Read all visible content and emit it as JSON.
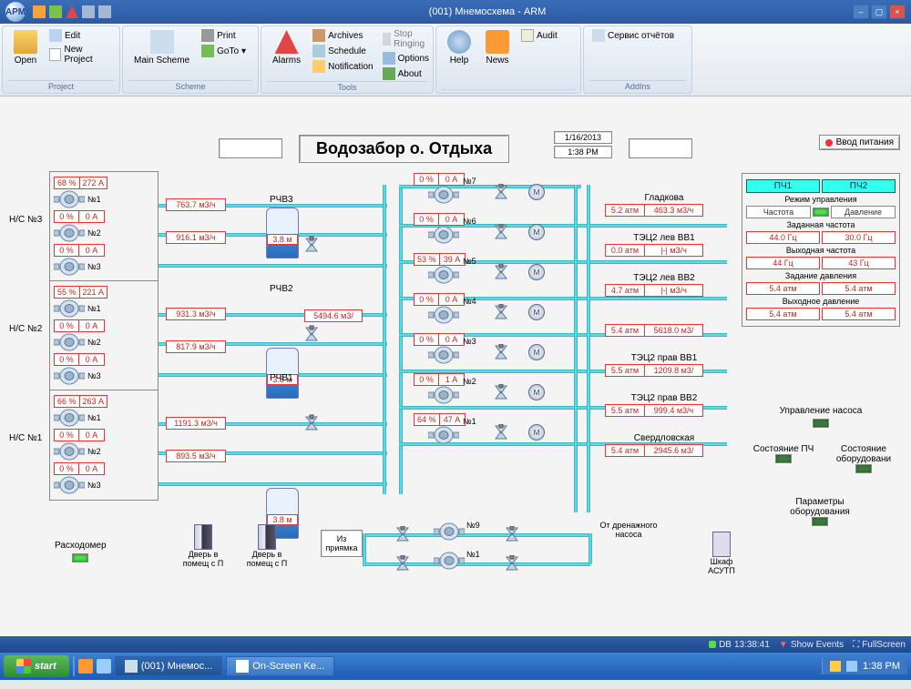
{
  "app": {
    "title": "(001) Мнемосхема - ARM",
    "logo": "АРМ"
  },
  "ribbon": {
    "groups": {
      "project": {
        "footer": "Project",
        "open": "Open",
        "edit": "Edit",
        "new_project": "New Project"
      },
      "scheme": {
        "footer": "Scheme",
        "main_scheme": "Main Scheme",
        "print": "Print",
        "goto": "GoTo"
      },
      "tools": {
        "footer": "Tools",
        "alarms": "Alarms",
        "archives": "Archives",
        "schedule": "Schedule",
        "notification": "Notification",
        "stop_ringing": "Stop Ringing",
        "options": "Options",
        "about": "About"
      },
      "misc": {
        "footer": "",
        "help": "Help",
        "news": "News",
        "audit": "Audit"
      },
      "addins": {
        "footer": "AddIns",
        "reports": "Сервис отчётов"
      }
    }
  },
  "main": {
    "title": "Водозабор о. Отдыха",
    "date": "1/16/2013",
    "time": "1:38 PM",
    "power_btn": "Ввод питания",
    "stations": [
      {
        "name": "Н/С №3",
        "rows": [
          {
            "pct": "68 %",
            "amp": "272 А",
            "num": "№1"
          },
          {
            "pct": "0 %",
            "amp": "0 А",
            "num": "№2"
          },
          {
            "pct": "0 %",
            "amp": "0 А",
            "num": "№3"
          }
        ],
        "flows": [
          "763.7 м3/ч",
          "916.1 м3/ч"
        ]
      },
      {
        "name": "Н/С №2",
        "rows": [
          {
            "pct": "55 %",
            "amp": "221 А",
            "num": "№1"
          },
          {
            "pct": "0 %",
            "amp": "0 А",
            "num": "№2"
          },
          {
            "pct": "0 %",
            "amp": "0 А",
            "num": "№3"
          }
        ],
        "flows": [
          "931.3 м3/ч",
          "817.9 м3/ч"
        ]
      },
      {
        "name": "Н/С №1",
        "rows": [
          {
            "pct": "66 %",
            "amp": "263 А",
            "num": "№1"
          },
          {
            "pct": "0 %",
            "amp": "0 А",
            "num": "№2"
          },
          {
            "pct": "0 %",
            "amp": "0 А",
            "num": "№3"
          }
        ],
        "flows": [
          "1191.3 м3/ч",
          "893.5 м3/ч"
        ]
      }
    ],
    "tanks": [
      {
        "name": "РЧВ3",
        "level": "3.8 м",
        "flow": ""
      },
      {
        "name": "РЧВ2",
        "level": "3.8 м",
        "flow": "5494.6 м3/"
      },
      {
        "name": "РЧВ1",
        "level": "3.8 м",
        "flow": ""
      }
    ],
    "center_pumps": [
      {
        "pct": "0 %",
        "amp": "0 А",
        "num": "№7"
      },
      {
        "pct": "0 %",
        "amp": "0 А",
        "num": "№6"
      },
      {
        "pct": "53 %",
        "amp": "39 А",
        "num": "№5"
      },
      {
        "pct": "0 %",
        "amp": "0 А",
        "num": "№4"
      },
      {
        "pct": "0 %",
        "amp": "0 А",
        "num": "№3"
      },
      {
        "pct": "0 %",
        "amp": "1 А",
        "num": "№2"
      },
      {
        "pct": "64 %",
        "amp": "47 А",
        "num": "№1"
      }
    ],
    "destinations": [
      {
        "name": "Гладкова",
        "atm": "5.2 атм",
        "flow": "463.3 м3/ч"
      },
      {
        "name": "ТЭЦ2 лев ВВ1",
        "atm": "0.0 атм",
        "flow": "|-| м3/ч"
      },
      {
        "name": "ТЭЦ2 лев ВВ2",
        "atm": "4.7 атм",
        "flow": "|-| м3/ч"
      },
      {
        "name": "",
        "atm": "5.4 атм",
        "flow": "5618.0 м3/"
      },
      {
        "name": "ТЭЦ2 прав ВВ1",
        "atm": "5.5 атм",
        "flow": "1209.8 м3/"
      },
      {
        "name": "ТЭЦ2 прав ВВ2",
        "atm": "5.5 атм",
        "flow": "999.4 м3/ч"
      },
      {
        "name": "Свердловская",
        "atm": "5.4 атм",
        "flow": "2945.6 м3/"
      }
    ],
    "bottom": {
      "flowmeter": "Расходомер",
      "door1": "Дверь в помещ с П",
      "door2": "Дверь в помещ с П",
      "pit": "Из приямка",
      "drain": "От дренажного насоса",
      "drain_pumps": [
        "№9",
        "№1"
      ],
      "cabinet": "Шкаф АСУТП"
    },
    "control_panel": {
      "pch1": "ПЧ1",
      "pch2": "ПЧ2",
      "mode_label": "Режим управления",
      "mode_freq": "Частота",
      "mode_press": "Давление",
      "freq_set_label": "Заданная частота",
      "freq_set": [
        "44.0 Гц",
        "30.0 Гц"
      ],
      "freq_out_label": "Выходная частота",
      "freq_out": [
        "44 Гц",
        "43 Гц"
      ],
      "press_set_label": "Задание давления",
      "press_set": [
        "5.4 атм",
        "5.4 атм"
      ],
      "press_out_label": "Выходное давление",
      "press_out": [
        "5.4 атм",
        "5.4 атм"
      ]
    },
    "btns": {
      "pump_ctrl": "Управление насоса",
      "pch_state": "Состояние ПЧ",
      "equip_state": "Состояние оборудовани",
      "equip_params": "Параметры оборудования"
    }
  },
  "statusbar": {
    "db": "DB",
    "dbtime": "13:38:41",
    "events": "Show Events",
    "fullscreen": "FullScreen"
  },
  "taskbar": {
    "start": "start",
    "task1": "(001) Мнемос...",
    "task2": "On-Screen Ke...",
    "clock": "1:38 PM"
  },
  "colors": {
    "accent": "#3a6db7",
    "pipe": "#66d6e0",
    "readout_border": "#e33",
    "led_on": "#5d5",
    "panel_hdr": "#38f0f0"
  }
}
